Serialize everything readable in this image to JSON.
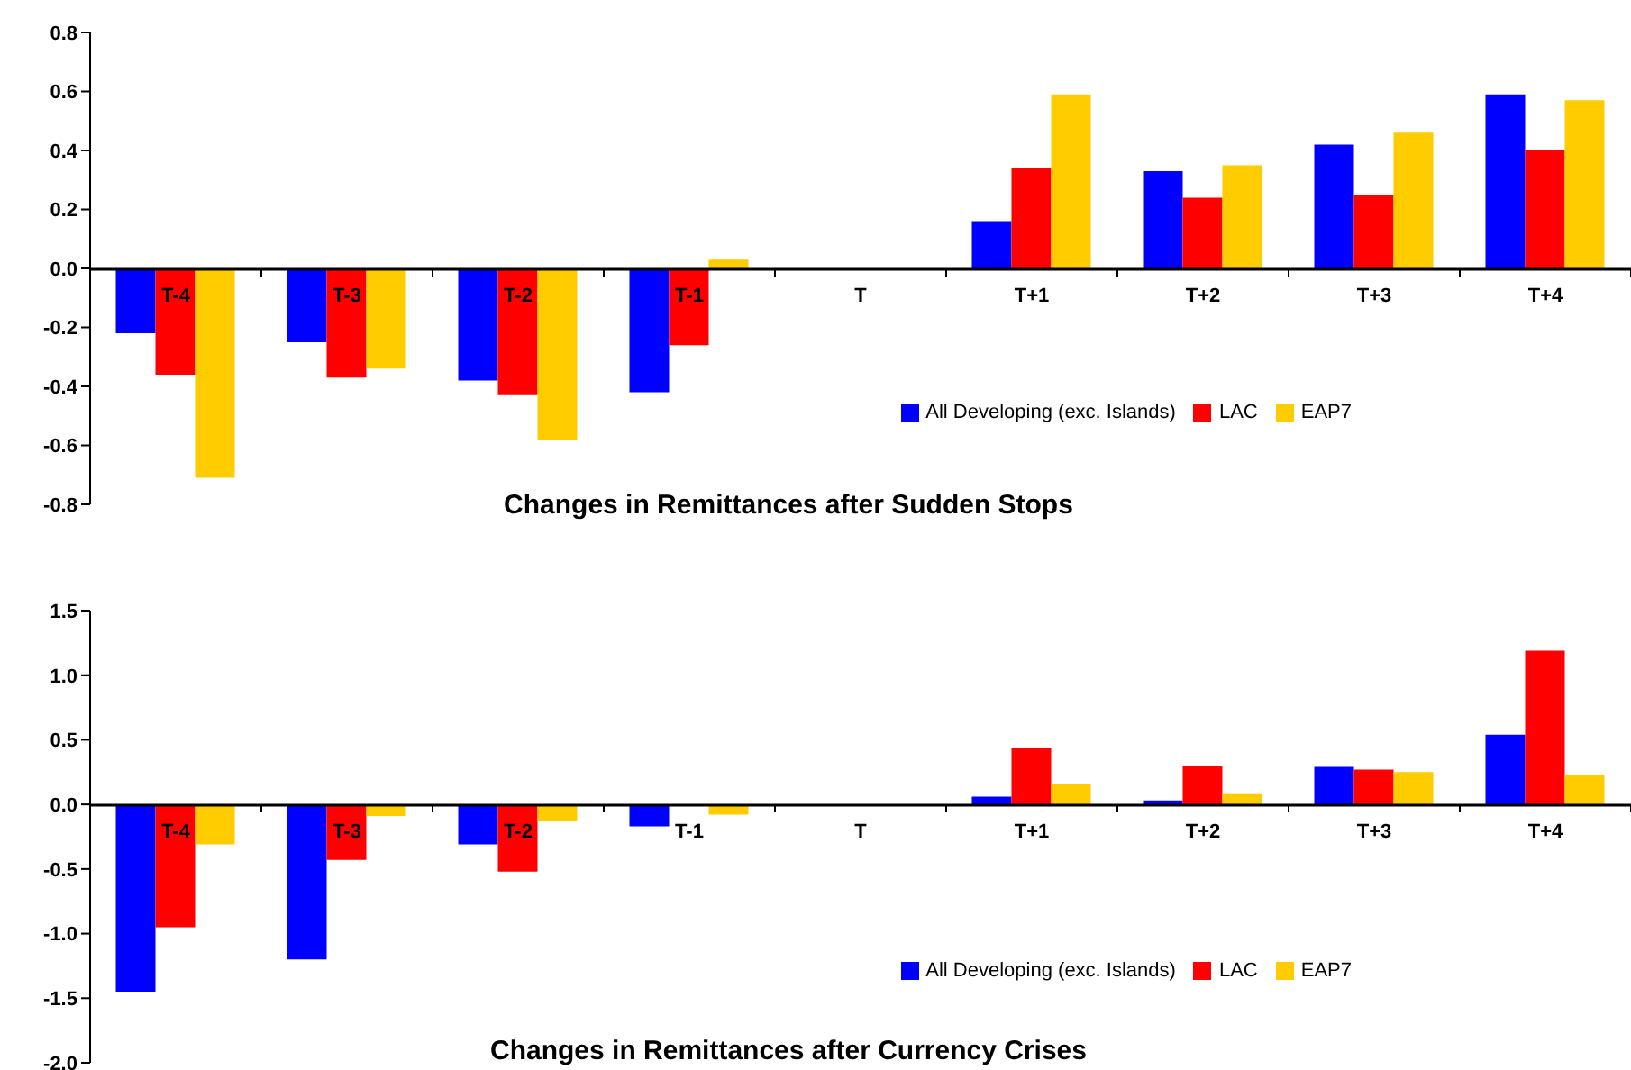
{
  "chart_data": [
    {
      "type": "bar",
      "title": "Changes in Remittances after Sudden Stops",
      "categories": [
        "T-4",
        "T-3",
        "T-2",
        "T-1",
        "T",
        "T+1",
        "T+2",
        "T+3",
        "T+4"
      ],
      "series": [
        {
          "name": "All Developing (exc. Islands)",
          "color": "#0000ff",
          "values": [
            -0.22,
            -0.25,
            -0.38,
            -0.42,
            null,
            0.16,
            0.33,
            0.42,
            0.59
          ]
        },
        {
          "name": "LAC",
          "color": "#ff0000",
          "values": [
            -0.36,
            -0.37,
            -0.43,
            -0.26,
            null,
            0.34,
            0.24,
            0.25,
            0.4
          ]
        },
        {
          "name": "EAP7",
          "color": "#ffcc00",
          "values": [
            -0.71,
            -0.34,
            -0.58,
            0.03,
            null,
            0.59,
            0.35,
            0.46,
            0.57
          ]
        }
      ],
      "ylim": [
        -0.8,
        0.8
      ],
      "yticks": [
        {
          "value": -0.8,
          "label": "-0.8"
        },
        {
          "value": -0.6,
          "label": "-0.6"
        },
        {
          "value": -0.4,
          "label": "-0.4"
        },
        {
          "value": -0.2,
          "label": "-0.2"
        },
        {
          "value": 0,
          "label": "0.0"
        },
        {
          "value": 0.2,
          "label": "0.2"
        },
        {
          "value": 0.4,
          "label": "0.4"
        },
        {
          "value": 0.6,
          "label": "0.6"
        },
        {
          "value": 0.8,
          "label": "0.8"
        }
      ],
      "grid": false,
      "legend": "bottom right"
    },
    {
      "type": "bar",
      "title": "Changes in Remittances after Currency Crises",
      "categories": [
        "T-4",
        "T-3",
        "T-2",
        "T-1",
        "T",
        "T+1",
        "T+2",
        "T+3",
        "T+4"
      ],
      "series": [
        {
          "name": "All Developing (exc. Islands)",
          "color": "#0000ff",
          "values": [
            -1.45,
            -1.2,
            -0.31,
            -0.17,
            null,
            0.06,
            0.03,
            0.29,
            0.54
          ]
        },
        {
          "name": "LAC",
          "color": "#ff0000",
          "values": [
            -0.95,
            -0.43,
            -0.52,
            null,
            null,
            0.44,
            0.3,
            0.27,
            1.19
          ]
        },
        {
          "name": "EAP7",
          "color": "#ffcc00",
          "values": [
            -0.31,
            -0.09,
            -0.13,
            -0.08,
            null,
            0.16,
            0.08,
            0.25,
            0.23
          ]
        }
      ],
      "ylim": [
        -2.0,
        1.5
      ],
      "yticks": [
        {
          "value": -2,
          "label": "-2.0"
        },
        {
          "value": -1.5,
          "label": "-1.5"
        },
        {
          "value": -1,
          "label": "-1.0"
        },
        {
          "value": -0.5,
          "label": "-0.5"
        },
        {
          "value": 0,
          "label": "0.0"
        },
        {
          "value": 0.5,
          "label": "0.5"
        },
        {
          "value": 1,
          "label": "1.0"
        },
        {
          "value": 1.5,
          "label": "1.5"
        }
      ],
      "grid": false,
      "legend": "bottom right"
    }
  ]
}
